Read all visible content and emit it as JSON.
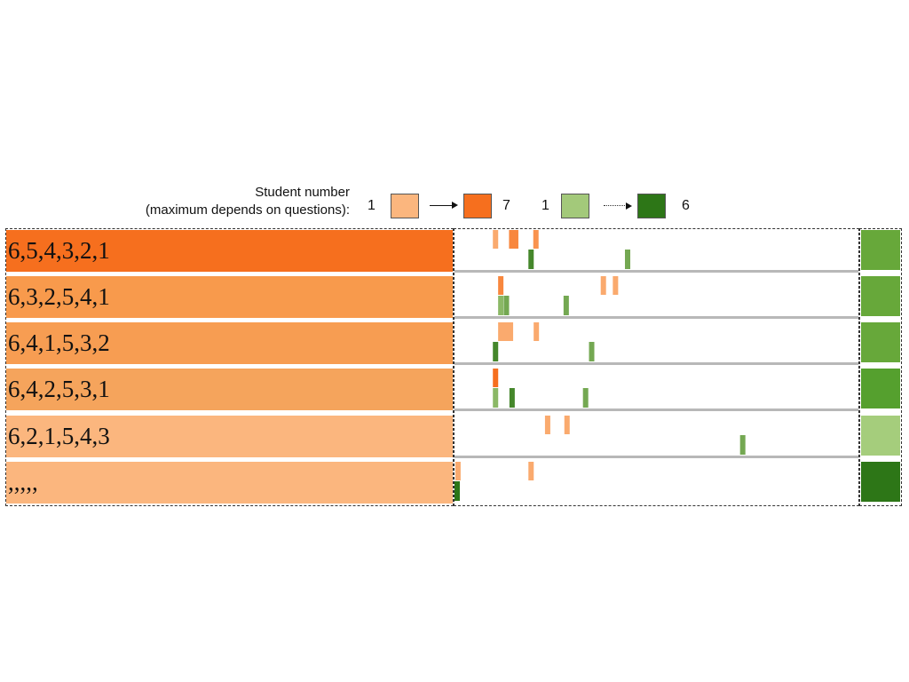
{
  "legend": {
    "title_line1": "Student number",
    "title_line2": "(maximum depends on questions):",
    "orange_min": "1",
    "orange_max": "7",
    "green_min": "1",
    "green_max": "6",
    "colors": {
      "orange_min": "#fbb67e",
      "orange_max": "#f66f1e",
      "green_min": "#a3c97a",
      "green_max": "#2d7617"
    }
  },
  "chart_data": {
    "type": "heatmap",
    "rows": [
      {
        "label": "6,5,4,3,2,1",
        "row_color": "#f66f1e",
        "score_color": "#67a83a",
        "orange_marks": [
          {
            "pos": 0.095,
            "count": 2
          },
          {
            "pos": 0.135,
            "count": 5
          },
          {
            "pos": 0.145,
            "count": 5
          },
          {
            "pos": 0.195,
            "count": 4
          }
        ],
        "green_marks": [
          {
            "pos": 0.183,
            "count": 5
          },
          {
            "pos": 0.422,
            "count": 3
          }
        ]
      },
      {
        "label": "6,3,2,5,4,1",
        "row_color": "#f89a4c",
        "score_color": "#67a83a",
        "orange_marks": [
          {
            "pos": 0.108,
            "count": 5
          },
          {
            "pos": 0.362,
            "count": 2
          },
          {
            "pos": 0.392,
            "count": 2
          }
        ],
        "green_marks": [
          {
            "pos": 0.108,
            "count": 2
          },
          {
            "pos": 0.122,
            "count": 3
          },
          {
            "pos": 0.27,
            "count": 3
          }
        ]
      },
      {
        "label": "6,4,1,5,3,2",
        "row_color": "#f79d52",
        "score_color": "#67a83a",
        "orange_marks": [
          {
            "pos": 0.108,
            "count": 2
          },
          {
            "pos": 0.12,
            "count": 2
          },
          {
            "pos": 0.132,
            "count": 2
          },
          {
            "pos": 0.196,
            "count": 2
          }
        ],
        "green_marks": [
          {
            "pos": 0.095,
            "count": 5
          },
          {
            "pos": 0.333,
            "count": 3
          }
        ]
      },
      {
        "label": "6,4,2,5,3,1",
        "row_color": "#f5a45c",
        "score_color": "#55a02e",
        "orange_marks": [
          {
            "pos": 0.095,
            "count": 7
          }
        ],
        "green_marks": [
          {
            "pos": 0.095,
            "count": 2
          },
          {
            "pos": 0.136,
            "count": 5
          },
          {
            "pos": 0.318,
            "count": 3
          }
        ]
      },
      {
        "label": "6,2,1,5,4,3",
        "row_color": "#fbb67e",
        "score_color": "#a5cd7c",
        "orange_marks": [
          {
            "pos": 0.224,
            "count": 2
          },
          {
            "pos": 0.272,
            "count": 2
          }
        ],
        "green_marks": [
          {
            "pos": 0.707,
            "count": 3
          }
        ]
      },
      {
        "label": ",,,,,",
        "row_color": "#fbb67e",
        "score_color": "#2d7617",
        "orange_marks": [
          {
            "pos": 0.002,
            "count": 2
          },
          {
            "pos": 0.183,
            "count": 2
          }
        ],
        "green_marks": [
          {
            "pos": 0.0,
            "count": 6
          }
        ]
      }
    ]
  }
}
